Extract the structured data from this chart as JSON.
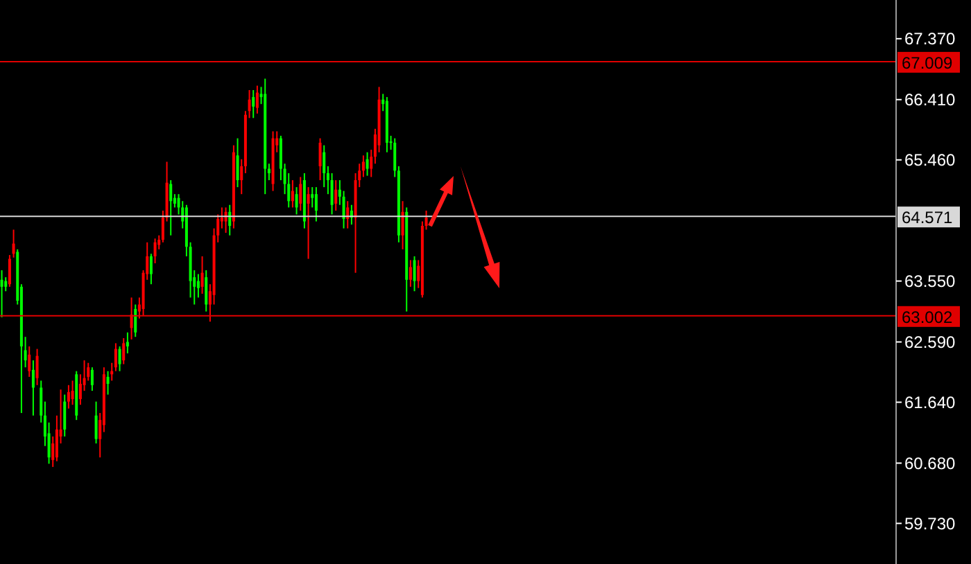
{
  "chart_data": {
    "type": "candlestick",
    "categories": [
      null,
      null,
      null,
      null,
      null,
      null,
      null,
      null,
      null,
      null,
      null,
      null,
      null,
      null,
      null,
      null,
      null,
      null,
      null,
      null,
      null,
      null,
      null,
      null,
      null,
      null,
      null,
      null,
      null,
      null,
      null,
      null,
      null,
      null,
      null,
      null,
      null,
      null,
      null,
      null,
      null,
      null,
      null,
      null,
      null,
      null,
      null,
      null,
      null,
      null,
      null,
      null,
      null,
      null,
      null,
      null,
      null,
      null,
      null,
      null,
      null,
      null,
      null,
      null,
      null,
      null,
      null,
      null,
      null,
      null,
      null,
      null,
      null,
      null,
      null,
      null,
      null,
      null,
      null,
      null,
      null,
      null,
      null,
      null,
      null,
      null,
      null,
      null,
      null,
      null,
      null,
      null,
      null,
      null,
      null,
      null,
      null,
      null,
      null,
      null,
      null,
      null,
      null,
      null,
      null,
      null,
      null,
      null,
      null,
      null,
      null,
      null,
      null,
      null,
      null,
      null,
      null,
      null,
      null,
      null,
      null,
      null,
      null,
      null,
      null,
      null,
      null,
      null,
      null,
      null,
      null,
      null,
      null,
      null,
      null,
      null,
      null,
      null,
      null,
      null,
      null,
      null,
      null,
      null,
      null,
      null,
      null,
      null,
      null,
      null,
      null,
      null,
      null,
      null,
      null,
      null,
      null,
      null,
      null,
      null,
      null,
      null,
      null,
      null,
      null,
      null,
      null,
      null,
      null,
      null,
      null,
      null,
      null,
      null,
      null,
      null,
      null,
      null,
      null,
      null,
      null,
      null,
      null,
      null,
      null,
      null,
      null,
      null,
      null,
      null,
      null,
      null,
      null,
      null,
      null,
      null,
      null,
      null,
      null,
      null,
      null,
      null,
      null,
      null,
      null,
      null,
      null,
      null,
      null,
      null,
      null,
      null,
      null,
      null,
      null,
      null,
      null,
      null,
      null,
      null,
      null,
      null,
      null,
      null,
      null,
      null,
      null,
      null
    ],
    "ohlc": [
      [
        63.57,
        63.72,
        62.98,
        63.46
      ],
      [
        63.55,
        63.61,
        63.39,
        63.46
      ],
      [
        63.5,
        63.96,
        63.46,
        63.9
      ],
      [
        63.98,
        64.36,
        63.92,
        64.14
      ],
      [
        64.01,
        64.05,
        63.18,
        63.24
      ],
      [
        63.46,
        63.5,
        61.47,
        62.52
      ],
      [
        62.46,
        62.67,
        62.19,
        62.3
      ],
      [
        62.13,
        62.52,
        62.04,
        62.39
      ],
      [
        62.15,
        62.3,
        61.43,
        61.87
      ],
      [
        62.02,
        62.48,
        61.91,
        62.37
      ],
      [
        61.87,
        61.98,
        61.32,
        61.43
      ],
      [
        61.43,
        61.65,
        60.95,
        61.1
      ],
      [
        61.15,
        61.32,
        60.67,
        60.77
      ],
      [
        60.73,
        61.1,
        60.62,
        60.99
      ],
      [
        60.77,
        61.43,
        60.71,
        61.21
      ],
      [
        61.1,
        61.84,
        60.99,
        61.21
      ],
      [
        61.65,
        61.76,
        61.1,
        61.21
      ],
      [
        61.65,
        61.91,
        61.54,
        61.8
      ],
      [
        61.69,
        61.98,
        61.6,
        61.82
      ],
      [
        62.08,
        62.13,
        61.36,
        61.43
      ],
      [
        61.69,
        62.08,
        61.6,
        61.93
      ],
      [
        61.91,
        62.3,
        61.82,
        62.02
      ],
      [
        62.04,
        62.26,
        61.98,
        62.19
      ],
      [
        62.15,
        62.19,
        61.82,
        61.91
      ],
      [
        61.43,
        61.65,
        60.99,
        61.06
      ],
      [
        61.06,
        61.47,
        60.77,
        61.36
      ],
      [
        61.28,
        62.19,
        61.17,
        62.08
      ],
      [
        62.04,
        62.13,
        61.76,
        61.93
      ],
      [
        62.08,
        62.26,
        61.98,
        62.13
      ],
      [
        62.19,
        62.57,
        62.13,
        62.48
      ],
      [
        62.48,
        62.52,
        62.13,
        62.24
      ],
      [
        62.3,
        62.65,
        62.24,
        62.57
      ],
      [
        62.59,
        62.74,
        62.41,
        62.52
      ],
      [
        62.81,
        63.29,
        62.63,
        63.02
      ],
      [
        63.11,
        63.18,
        62.67,
        62.74
      ],
      [
        63.07,
        63.29,
        62.96,
        63.18
      ],
      [
        63.11,
        63.72,
        63.0,
        63.68
      ],
      [
        63.66,
        64.16,
        63.57,
        63.94
      ],
      [
        63.94,
        63.98,
        63.5,
        63.66
      ],
      [
        63.94,
        64.22,
        63.83,
        64.16
      ],
      [
        64.12,
        64.27,
        64.05,
        64.2
      ],
      [
        64.2,
        64.66,
        64.16,
        64.55
      ],
      [
        64.55,
        65.43,
        64.49,
        65.1
      ],
      [
        65.08,
        65.14,
        64.27,
        64.81
      ],
      [
        64.86,
        64.92,
        64.71,
        64.77
      ],
      [
        64.86,
        64.92,
        64.6,
        64.71
      ],
      [
        64.71,
        64.81,
        64.38,
        64.49
      ],
      [
        64.71,
        64.75,
        63.94,
        64.09
      ],
      [
        64.09,
        64.16,
        63.29,
        63.55
      ],
      [
        63.61,
        63.72,
        63.18,
        63.46
      ],
      [
        63.55,
        63.66,
        63.29,
        63.44
      ],
      [
        63.46,
        63.94,
        63.35,
        63.68
      ],
      [
        63.61,
        63.72,
        63.07,
        63.18
      ],
      [
        63.18,
        63.5,
        62.91,
        63.39
      ],
      [
        63.33,
        64.38,
        63.18,
        64.27
      ],
      [
        64.27,
        64.6,
        64.16,
        64.53
      ],
      [
        64.49,
        64.71,
        64.38,
        64.55
      ],
      [
        64.49,
        64.71,
        64.31,
        64.64
      ],
      [
        64.64,
        64.75,
        64.27,
        64.42
      ],
      [
        64.49,
        65.69,
        64.38,
        65.58
      ],
      [
        65.53,
        65.8,
        65.03,
        65.14
      ],
      [
        65.14,
        65.47,
        64.92,
        65.36
      ],
      [
        65.36,
        66.23,
        65.25,
        66.17
      ],
      [
        66.23,
        66.56,
        66.12,
        66.41
      ],
      [
        66.45,
        66.56,
        66.12,
        66.3
      ],
      [
        66.28,
        66.63,
        66.19,
        66.52
      ],
      [
        66.5,
        66.61,
        66.34,
        66.45
      ],
      [
        66.5,
        66.74,
        64.92,
        65.32
      ],
      [
        65.32,
        65.4,
        65.14,
        65.25
      ],
      [
        65.08,
        65.91,
        64.97,
        65.8
      ],
      [
        65.69,
        65.91,
        65.58,
        65.8
      ],
      [
        65.8,
        65.84,
        65.14,
        65.32
      ],
      [
        65.32,
        65.4,
        64.92,
        65.08
      ],
      [
        65.08,
        65.25,
        64.71,
        64.81
      ],
      [
        64.81,
        65.14,
        64.71,
        64.97
      ],
      [
        64.92,
        65.03,
        64.6,
        64.71
      ],
      [
        64.77,
        65.19,
        64.66,
        65.08
      ],
      [
        65.14,
        65.25,
        64.38,
        64.49
      ],
      [
        64.77,
        65.03,
        63.9,
        64.92
      ],
      [
        64.92,
        65.03,
        64.71,
        64.86
      ],
      [
        64.92,
        65.03,
        64.49,
        64.66
      ],
      [
        65.36,
        65.8,
        65.14,
        65.73
      ],
      [
        65.58,
        65.69,
        65.03,
        65.25
      ],
      [
        65.25,
        65.36,
        64.92,
        65.14
      ],
      [
        65.14,
        65.25,
        64.6,
        64.75
      ],
      [
        64.77,
        65.14,
        64.66,
        64.99
      ],
      [
        64.99,
        65.14,
        64.75,
        64.88
      ],
      [
        64.88,
        64.97,
        64.38,
        64.53
      ],
      [
        64.53,
        64.81,
        64.38,
        64.71
      ],
      [
        64.66,
        64.75,
        64.44,
        64.55
      ],
      [
        64.55,
        65.25,
        63.68,
        65.14
      ],
      [
        65.14,
        65.4,
        65.03,
        65.29
      ],
      [
        65.29,
        65.53,
        65.19,
        65.43
      ],
      [
        65.47,
        65.58,
        65.21,
        65.32
      ],
      [
        65.32,
        65.62,
        65.19,
        65.51
      ],
      [
        65.51,
        65.95,
        65.4,
        65.86
      ],
      [
        65.69,
        66.61,
        65.58,
        66.41
      ],
      [
        66.41,
        66.5,
        66.23,
        66.34
      ],
      [
        66.39,
        66.45,
        65.58,
        65.73
      ],
      [
        65.75,
        65.84,
        65.62,
        65.73
      ],
      [
        65.73,
        65.8,
        65.19,
        65.29
      ],
      [
        65.29,
        65.36,
        64.16,
        64.27
      ],
      [
        64.27,
        64.81,
        64.05,
        64.64
      ],
      [
        64.64,
        64.71,
        63.07,
        63.57
      ],
      [
        63.57,
        63.88,
        63.46,
        63.77
      ],
      [
        63.88,
        63.94,
        63.39,
        63.55
      ],
      [
        63.55,
        63.88,
        63.44,
        63.79
      ],
      [
        63.33,
        64.49,
        63.29,
        64.42
      ],
      [
        64.42,
        64.66,
        64.36,
        64.55
      ],
      null,
      null,
      null,
      null,
      null,
      null,
      null,
      null,
      null,
      null,
      null,
      null,
      null,
      null,
      null,
      null,
      null,
      null,
      null,
      null,
      null,
      null,
      null,
      null,
      null,
      null,
      null,
      null,
      null,
      null,
      null,
      null,
      null,
      null,
      null,
      null,
      null,
      null,
      null,
      null,
      null,
      null,
      null,
      null,
      null,
      null,
      null,
      null,
      null,
      null,
      null,
      null,
      null,
      null,
      null,
      null,
      null,
      null,
      null,
      null,
      null,
      null,
      null,
      null,
      null,
      null,
      null,
      null,
      null,
      null,
      null,
      null,
      null,
      null,
      null,
      null,
      null,
      null,
      null,
      null,
      null,
      null,
      null,
      null,
      null,
      null,
      null,
      null,
      null,
      null,
      null,
      null,
      null,
      null,
      null,
      null,
      null,
      null,
      null,
      null,
      null,
      null,
      null,
      null,
      null,
      null,
      null,
      null,
      null,
      null,
      null,
      null,
      null,
      null,
      null,
      null,
      null,
      null,
      null
    ],
    "colors": [
      "#00ff00",
      "#00ff00",
      "#ff0000",
      "#ff0000",
      "#00ff00",
      "#00ff00",
      "#00ff00",
      "#ff0000",
      "#00ff00",
      "#ff0000",
      "#00ff00",
      "#00ff00",
      "#00ff00",
      "#ff0000",
      "#ff0000",
      "#ff0000",
      "#00ff00",
      "#ff0000",
      "#ff0000",
      "#00ff00",
      "#ff0000",
      "#ff0000",
      "#ff0000",
      "#00ff00",
      "#00ff00",
      "#ff0000",
      "#ff0000",
      "#00ff00",
      "#ff0000",
      "#ff0000",
      "#00ff00",
      "#ff0000",
      "#00ff00",
      "#ff0000",
      "#00ff00",
      "#ff0000",
      "#ff0000",
      "#ff0000",
      "#00ff00",
      "#ff0000",
      "#ff0000",
      "#ff0000",
      "#ff0000",
      "#00ff00",
      "#00ff00",
      "#00ff00",
      "#00ff00",
      "#00ff00",
      "#00ff00",
      "#00ff00",
      "#00ff00",
      "#ff0000",
      "#00ff00",
      "#ff0000",
      "#ff0000",
      "#ff0000",
      "#ff0000",
      "#ff0000",
      "#00ff00",
      "#ff0000",
      "#00ff00",
      "#ff0000",
      "#ff0000",
      "#ff0000",
      "#00ff00",
      "#ff0000",
      "#00ff00",
      "#00ff00",
      "#00ff00",
      "#ff0000",
      "#ff0000",
      "#00ff00",
      "#00ff00",
      "#00ff00",
      "#ff0000",
      "#00ff00",
      "#ff0000",
      "#00ff00",
      "#ff0000",
      "#00ff00",
      "#00ff00",
      "#ff0000",
      "#00ff00",
      "#00ff00",
      "#00ff00",
      "#ff0000",
      "#00ff00",
      "#00ff00",
      "#ff0000",
      "#00ff00",
      "#ff0000",
      "#ff0000",
      "#ff0000",
      "#00ff00",
      "#ff0000",
      "#ff0000",
      "#ff0000",
      "#00ff00",
      "#00ff00",
      "#00ff00",
      "#00ff00",
      "#00ff00",
      "#ff0000",
      "#00ff00",
      "#ff0000",
      "#00ff00",
      "#ff0000",
      "#ff0000",
      "#ff0000",
      null,
      null,
      null,
      null,
      null,
      null,
      null,
      null,
      null,
      null,
      null,
      null,
      null,
      null,
      null,
      null,
      null,
      null,
      null,
      null,
      null,
      null,
      null,
      null,
      null,
      null,
      null,
      null,
      null,
      null,
      null,
      null,
      null,
      null,
      null,
      null,
      null,
      null,
      null,
      null,
      null,
      null,
      null,
      null,
      null,
      null,
      null,
      null,
      null,
      null,
      null,
      null,
      null,
      null,
      null,
      null,
      null,
      null,
      null,
      null,
      null,
      null,
      null,
      null,
      null,
      null,
      null,
      null,
      null,
      null,
      null,
      null,
      null,
      null,
      null,
      null,
      null,
      null,
      null,
      null,
      null,
      null,
      null,
      null,
      null,
      null,
      null,
      null,
      null,
      null,
      null,
      null,
      null,
      null,
      null,
      null,
      null,
      null,
      null,
      null,
      null,
      null,
      null,
      null,
      null,
      null,
      null,
      null,
      null,
      null,
      null,
      null,
      null,
      null,
      null,
      null,
      null,
      null,
      null
    ],
    "ylim": [
      59.09,
      67.98
    ],
    "yticks": [
      {
        "value": 67.37,
        "label": "67.370"
      },
      {
        "value": 66.41,
        "label": "66.410"
      },
      {
        "value": 65.46,
        "label": "65.460"
      },
      {
        "value": 63.55,
        "label": "63.550"
      },
      {
        "value": 62.59,
        "label": "62.590"
      },
      {
        "value": 61.64,
        "label": "61.640"
      },
      {
        "value": 60.68,
        "label": "60.680"
      },
      {
        "value": 59.73,
        "label": "59.730"
      }
    ],
    "ref_lines": [
      {
        "axis": "y",
        "value": 67.009,
        "label": "67.009",
        "color": "#e00000"
      },
      {
        "axis": "y",
        "value": 64.571,
        "label": "64.571",
        "color": "#d8d8d8"
      },
      {
        "axis": "y",
        "value": 63.002,
        "label": "63.002",
        "color": "#e00000"
      }
    ],
    "tick_labels": "y"
  }
}
